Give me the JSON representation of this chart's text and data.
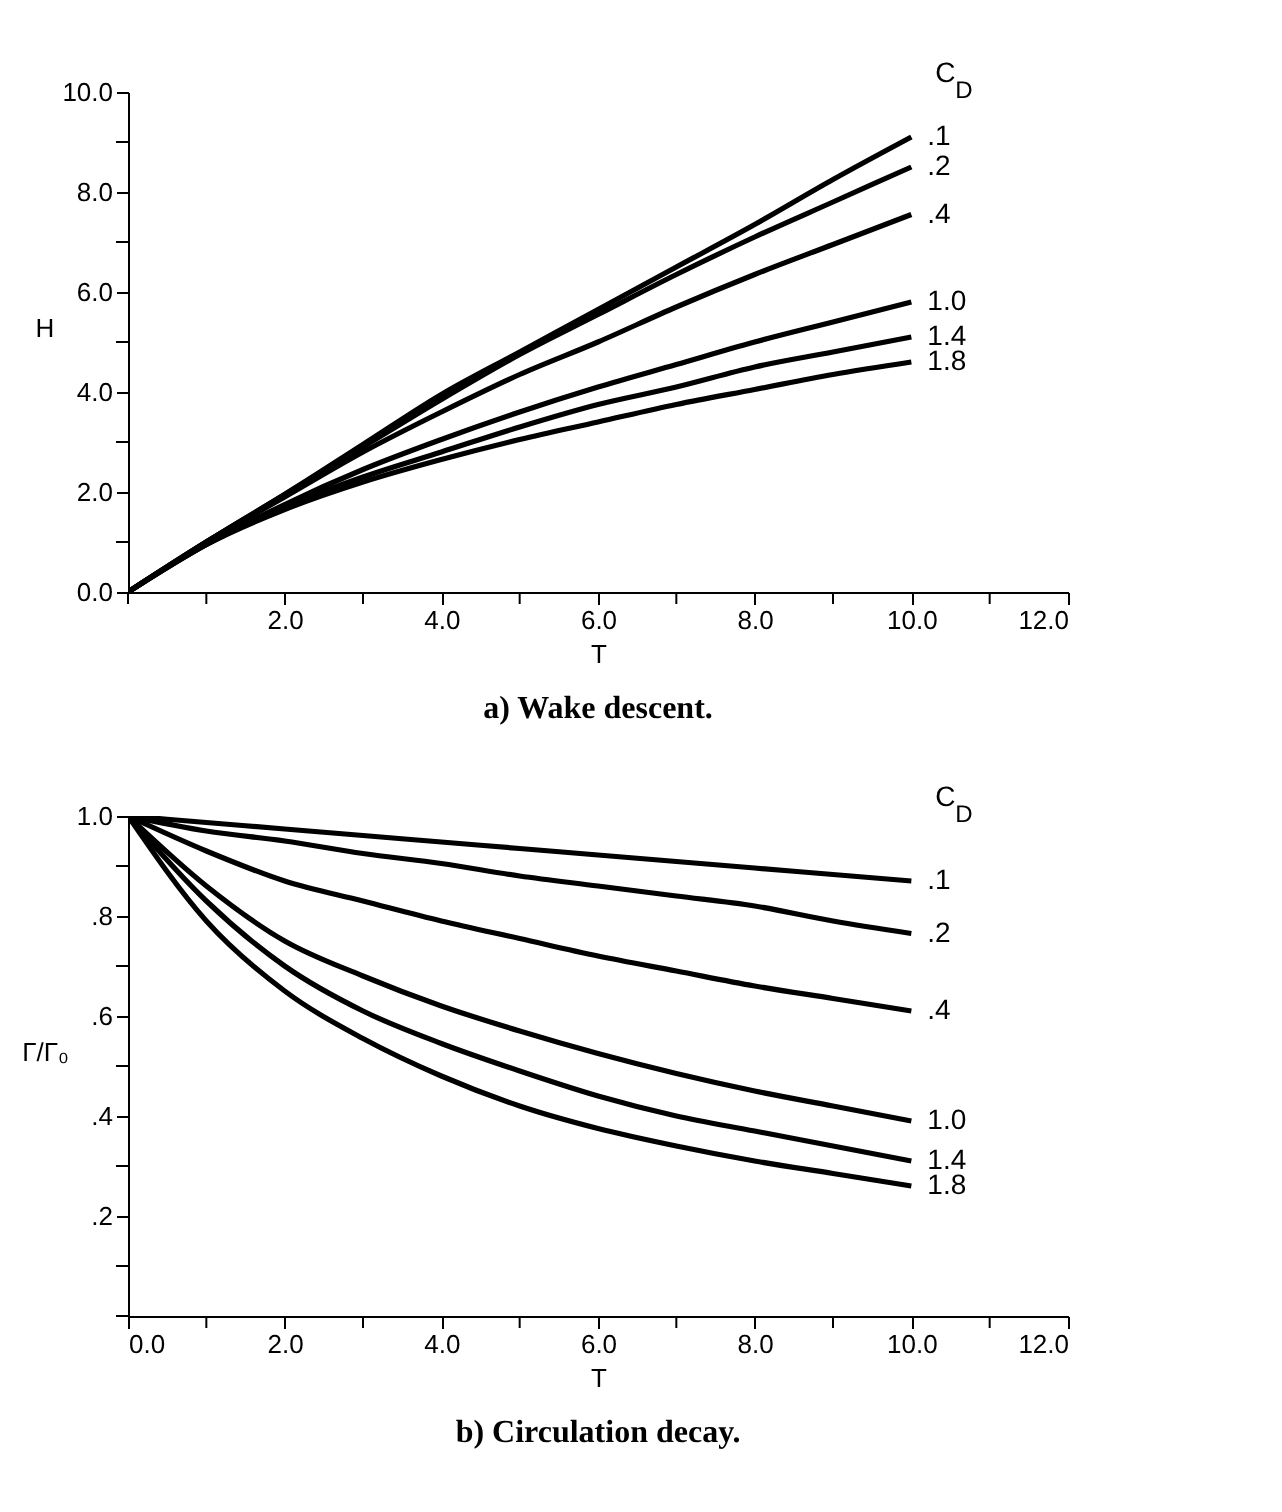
{
  "chart_data": [
    {
      "type": "line",
      "title": "a) Wake descent.",
      "xlabel": "T",
      "ylabel": "H",
      "legend_title": "C$_{D}$",
      "line_style": "solid",
      "marker": "none",
      "grid": false,
      "x": [
        0,
        1,
        2,
        3,
        4,
        5,
        6,
        7,
        8,
        9,
        10
      ],
      "xlim": [
        0,
        12
      ],
      "ylim": [
        0,
        10
      ],
      "xticks": [
        {
          "value": 0,
          "label": null
        },
        {
          "value": 1,
          "label": null
        },
        {
          "value": 2,
          "label": "2.0"
        },
        {
          "value": 3,
          "label": null
        },
        {
          "value": 4,
          "label": "4.0"
        },
        {
          "value": 5,
          "label": null
        },
        {
          "value": 6,
          "label": "6.0"
        },
        {
          "value": 7,
          "label": null
        },
        {
          "value": 8,
          "label": "8.0"
        },
        {
          "value": 9,
          "label": null
        },
        {
          "value": 10,
          "label": "10.0"
        },
        {
          "value": 11,
          "label": null
        },
        {
          "value": 12,
          "label": "12.0"
        }
      ],
      "yticks": [
        {
          "value": 0,
          "label": "0.0"
        },
        {
          "value": 1,
          "label": null
        },
        {
          "value": 2,
          "label": "2.0"
        },
        {
          "value": 3,
          "label": null
        },
        {
          "value": 4,
          "label": "4.0"
        },
        {
          "value": 5,
          "label": null
        },
        {
          "value": 6,
          "label": "6.0"
        },
        {
          "value": 7,
          "label": null
        },
        {
          "value": 8,
          "label": "8.0"
        },
        {
          "value": 9,
          "label": null
        },
        {
          "value": 10,
          "label": "10.0"
        }
      ],
      "series": [
        {
          "name": ".1",
          "color": "#000000",
          "values": [
            0,
            1.0,
            1.95,
            2.95,
            3.95,
            4.8,
            5.65,
            6.5,
            7.35,
            8.25,
            9.1
          ]
        },
        {
          "name": ".2",
          "color": "#000000",
          "values": [
            0,
            1.0,
            1.95,
            2.9,
            3.85,
            4.75,
            5.55,
            6.35,
            7.1,
            7.8,
            8.5
          ]
        },
        {
          "name": ".4",
          "color": "#000000",
          "values": [
            0,
            1.0,
            1.9,
            2.8,
            3.6,
            4.35,
            5.0,
            5.7,
            6.35,
            6.95,
            7.55
          ]
        },
        {
          "name": "1.0",
          "color": "#000000",
          "values": [
            0,
            0.95,
            1.75,
            2.45,
            3.05,
            3.6,
            4.1,
            4.55,
            5.0,
            5.4,
            5.8
          ]
        },
        {
          "name": "1.4",
          "color": "#000000",
          "values": [
            0,
            0.95,
            1.7,
            2.3,
            2.8,
            3.3,
            3.75,
            4.1,
            4.5,
            4.8,
            5.1
          ]
        },
        {
          "name": "1.8",
          "color": "#000000",
          "values": [
            0,
            0.95,
            1.65,
            2.2,
            2.65,
            3.05,
            3.4,
            3.75,
            4.05,
            4.35,
            4.6
          ]
        }
      ]
    },
    {
      "type": "line",
      "title": "b) Circulation decay.",
      "xlabel": "T",
      "ylabel": "Γ/Γ₀",
      "legend_title": "C$_{D}$",
      "line_style": "solid",
      "marker": "none",
      "grid": false,
      "x": [
        0,
        1,
        2,
        3,
        4,
        5,
        6,
        7,
        8,
        9,
        10
      ],
      "xlim": [
        0,
        12
      ],
      "ylim": [
        0,
        1.0
      ],
      "xticks": [
        {
          "value": 0,
          "label": "0.0"
        },
        {
          "value": 1,
          "label": null
        },
        {
          "value": 2,
          "label": "2.0"
        },
        {
          "value": 3,
          "label": null
        },
        {
          "value": 4,
          "label": "4.0"
        },
        {
          "value": 5,
          "label": null
        },
        {
          "value": 6,
          "label": "6.0"
        },
        {
          "value": 7,
          "label": null
        },
        {
          "value": 8,
          "label": "8.0"
        },
        {
          "value": 9,
          "label": null
        },
        {
          "value": 10,
          "label": "10.0"
        },
        {
          "value": 11,
          "label": null
        },
        {
          "value": 12,
          "label": "12.0"
        }
      ],
      "yticks": [
        {
          "value": 0,
          "label": null
        },
        {
          "value": 0.1,
          "label": null
        },
        {
          "value": 0.2,
          "label": ".2"
        },
        {
          "value": 0.3,
          "label": null
        },
        {
          "value": 0.4,
          "label": ".4"
        },
        {
          "value": 0.5,
          "label": null
        },
        {
          "value": 0.6,
          "label": ".6"
        },
        {
          "value": 0.7,
          "label": null
        },
        {
          "value": 0.8,
          "label": ".8"
        },
        {
          "value": 0.9,
          "label": null
        },
        {
          "value": 1.0,
          "label": "1.0"
        }
      ],
      "series": [
        {
          "name": ".1",
          "color": "#000000",
          "values": [
            1.0,
            0.987,
            0.974,
            0.961,
            0.948,
            0.935,
            0.922,
            0.909,
            0.896,
            0.883,
            0.87
          ]
        },
        {
          "name": ".2",
          "color": "#000000",
          "values": [
            1.0,
            0.97,
            0.95,
            0.925,
            0.905,
            0.88,
            0.86,
            0.84,
            0.82,
            0.79,
            0.765
          ]
        },
        {
          "name": ".4",
          "color": "#000000",
          "values": [
            1.0,
            0.93,
            0.87,
            0.83,
            0.79,
            0.755,
            0.72,
            0.69,
            0.66,
            0.635,
            0.61
          ]
        },
        {
          "name": "1.0",
          "color": "#000000",
          "values": [
            1.0,
            0.86,
            0.75,
            0.68,
            0.62,
            0.57,
            0.525,
            0.485,
            0.45,
            0.42,
            0.39
          ]
        },
        {
          "name": "1.4",
          "color": "#000000",
          "values": [
            1.0,
            0.83,
            0.7,
            0.61,
            0.545,
            0.49,
            0.44,
            0.4,
            0.37,
            0.34,
            0.31
          ]
        },
        {
          "name": "1.8",
          "color": "#000000",
          "values": [
            1.0,
            0.79,
            0.65,
            0.555,
            0.48,
            0.42,
            0.375,
            0.34,
            0.31,
            0.285,
            0.26
          ]
        }
      ]
    }
  ]
}
